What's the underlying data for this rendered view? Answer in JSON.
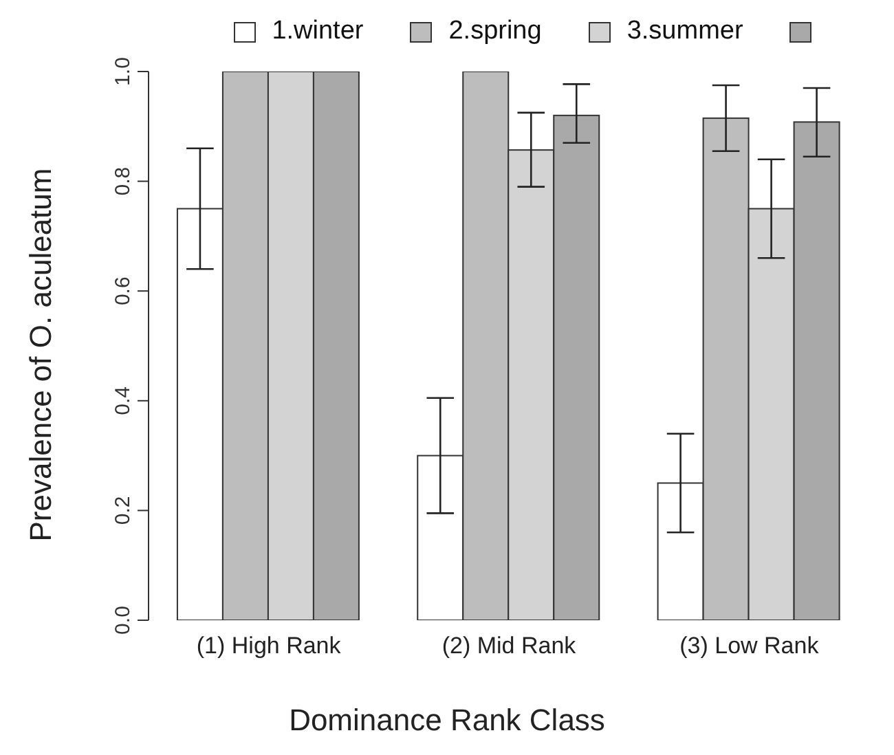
{
  "chart_data": {
    "type": "bar",
    "xlabel": "Dominance Rank Class",
    "ylabel": "Prevalence of O. aculeatum",
    "categories": [
      "(1) High Rank",
      "(2) Mid Rank",
      "(3) Low Rank"
    ],
    "series": [
      {
        "name": "1.winter",
        "color": "#ffffff",
        "values": [
          0.75,
          0.3,
          0.25
        ],
        "errors": [
          [
            0.64,
            0.86
          ],
          [
            0.195,
            0.405
          ],
          [
            0.16,
            0.34
          ]
        ]
      },
      {
        "name": "2.spring",
        "color": "#bdbdbd",
        "values": [
          1.0,
          1.0,
          0.915
        ],
        "errors": [
          null,
          null,
          [
            0.855,
            0.975
          ]
        ]
      },
      {
        "name": "3.summer",
        "color": "#d3d3d3",
        "values": [
          1.0,
          0.857,
          0.75
        ],
        "errors": [
          null,
          [
            0.79,
            0.925
          ],
          [
            0.66,
            0.84
          ]
        ]
      },
      {
        "color": "#a9a9a9",
        "values": [
          1.0,
          0.92,
          0.908
        ],
        "errors": [
          null,
          [
            0.87,
            0.977
          ],
          [
            0.845,
            0.97
          ]
        ]
      }
    ],
    "ylim": [
      0,
      1
    ],
    "yticks": [
      {
        "value": 0,
        "label": "0.0"
      },
      {
        "value": 0.2,
        "label": "0.2"
      },
      {
        "value": 0.4,
        "label": "0.4"
      },
      {
        "value": 0.6,
        "label": "0.6"
      },
      {
        "value": 0.8,
        "label": "0.8"
      },
      {
        "value": 1.0,
        "label": "1.0"
      }
    ],
    "grid": false,
    "legend": "top"
  }
}
